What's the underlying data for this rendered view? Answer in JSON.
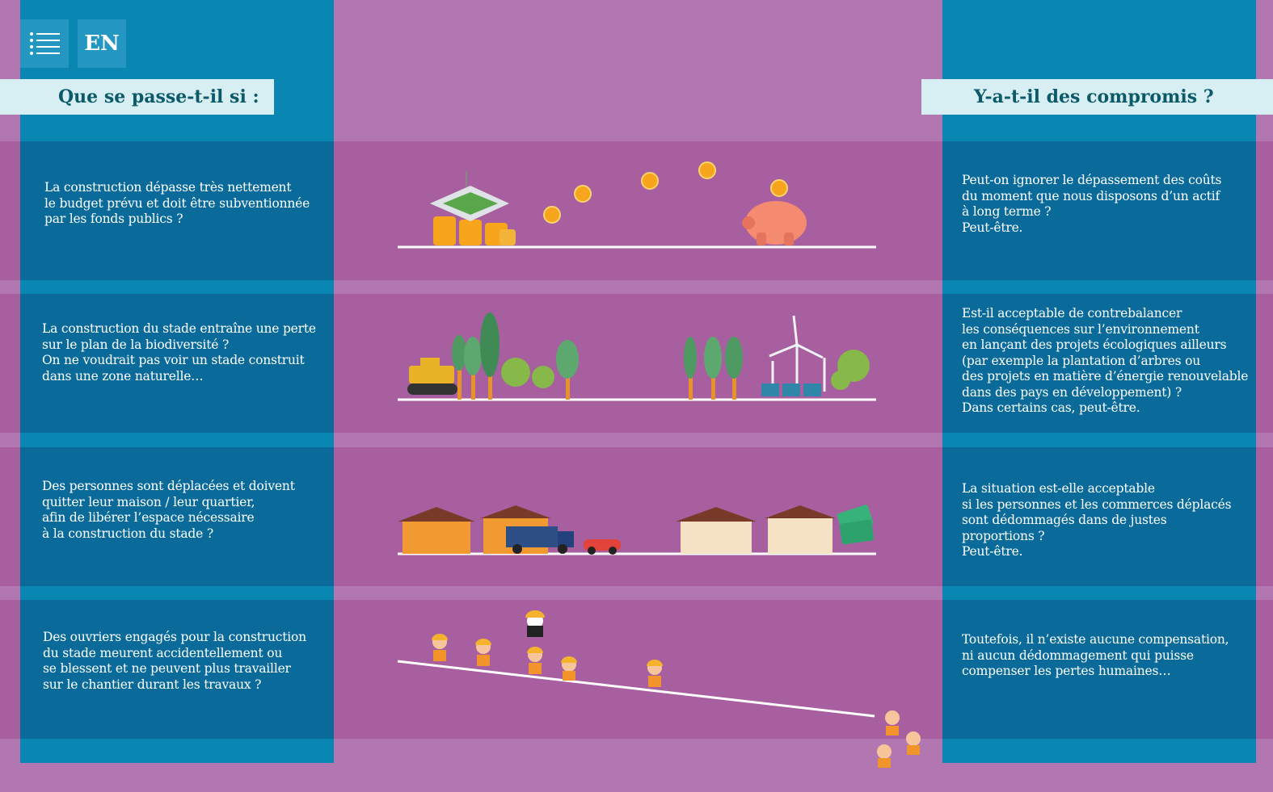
{
  "nav": {
    "menu_icon": "list-icon",
    "language_label": "EN"
  },
  "headers": {
    "left": "Que se passe-t-il si :",
    "right": "Y-a-t-il des compromis  ?"
  },
  "rows": [
    {
      "question": "La construction dépasse très nettement\nle budget prévu et doit être subventionnée\npar les fonds publics ?",
      "answer": "Peut-on ignorer le dépassement des coûts\ndu moment que nous disposons d’un actif\nà long terme ?\nPeut-être.",
      "illustration": "stadium-coins-piggy-bank"
    },
    {
      "question": "La construction du stade entraîne une perte\nsur le plan de la biodiversité ?\nOn ne voudrait pas voir un stade construit\ndans une zone naturelle…",
      "answer": "Est-il acceptable de contrebalancer\nles conséquences sur l’environnement\nen lançant des projets écologiques ailleurs\n(par exemple la plantation d’arbres ou\ndes projets en matière d’énergie renouvelable\ndans des pays en développement) ?\nDans certains cas, peut-être.",
      "illustration": "bulldozer-trees-wind-turbines"
    },
    {
      "question": "Des personnes sont déplacées et doivent\nquitter leur maison / leur quartier,\nafin de libérer l’espace nécessaire\nà la construction du stade ?",
      "answer": "La situation est-elle acceptable\nsi les personnes et les commerces déplacés\nsont dédommagés dans de justes\nproportions ?\nPeut-être.",
      "illustration": "houses-moving-truck-money"
    },
    {
      "question": "Des ouvriers engagés pour la construction\ndu stade meurent accidentellement ou\nse blessent et ne peuvent plus travailler\nsur le chantier durant les travaux ?",
      "answer": "Toutefois, il n’existe aucune compensation,\nni aucun dédommagement qui puisse\ncompenser les pertes humaines…",
      "illustration": "workers-falling-slope"
    }
  ],
  "colors": {
    "background": "#b277b0",
    "band": "#a85f9f",
    "column": "#0a86b3",
    "cell": "#0a6b9b",
    "header_bg": "#d7eef3",
    "header_text": "#0b5a6a"
  }
}
